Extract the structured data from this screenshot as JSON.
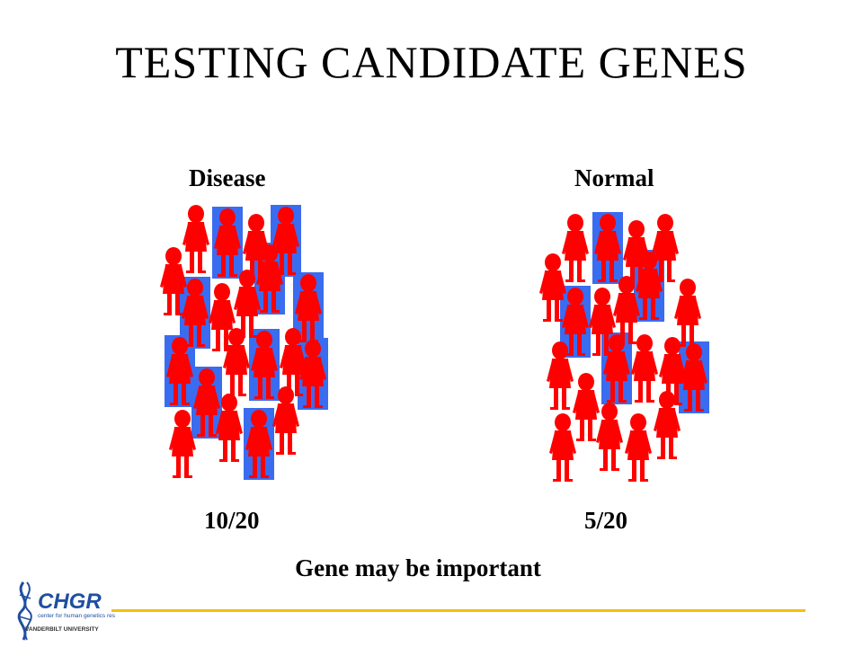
{
  "slide": {
    "title": "TESTING CANDIDATE GENES",
    "groups": [
      {
        "label": "Disease",
        "ratio": "10/20",
        "total": 20,
        "with_variant": 10
      },
      {
        "label": "Normal",
        "ratio": "5/20",
        "total": 20,
        "with_variant": 5
      }
    ],
    "conclusion": "Gene may be important"
  },
  "colors": {
    "person": "#ff0000",
    "variant_highlight": "#3a6cf0",
    "rule": "#f2c200",
    "logo_blue": "#1f4fa0"
  },
  "logo": {
    "name": "CHGR",
    "subtitle": "center for human genetics research",
    "institution": "VANDERBILT UNIVERSITY"
  }
}
